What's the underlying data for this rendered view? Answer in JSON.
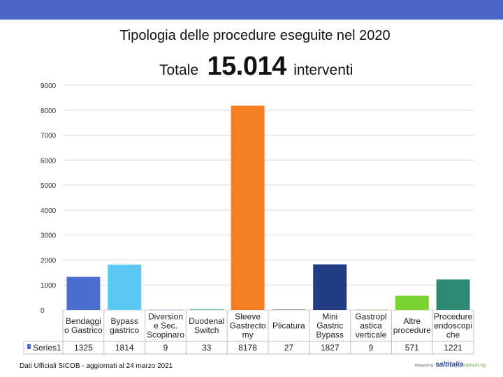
{
  "header": {
    "title": "Tipologia delle procedure eseguite nel 2020",
    "total_label": "Totale",
    "total_value": "15.014",
    "total_unit": "interventi"
  },
  "chart_data": {
    "type": "bar",
    "ylim": [
      0,
      9000
    ],
    "y_ticks": [
      "0",
      "1000",
      "2000",
      "3000",
      "4000",
      "5000",
      "6000",
      "7000",
      "8000",
      "9000"
    ],
    "grid": true,
    "legend_placement": "table-left",
    "categories": [
      [
        "Bendaggi",
        "o Gastrico"
      ],
      [
        "Bypass",
        "gastrico"
      ],
      [
        "Diversion",
        "e Sec.",
        "Scopinaro"
      ],
      [
        "Duodenal",
        "Switch"
      ],
      [
        "Sleeve",
        "Gastrecto",
        "my"
      ],
      [
        "Plicatura"
      ],
      [
        "Mini",
        "Gastric",
        "Bypass"
      ],
      [
        "Gastropl",
        "astica",
        "verticale"
      ],
      [
        "Altre",
        "procedure"
      ],
      [
        "Procedure",
        "endoscopi",
        "che"
      ]
    ],
    "series": [
      {
        "name": "Series1",
        "values": [
          1325,
          1814,
          9,
          33,
          8178,
          27,
          1827,
          9,
          571,
          1221
        ],
        "value_labels": [
          "1325",
          "1814",
          "9",
          "33",
          "8178",
          "27",
          "1827",
          "9",
          "571",
          "1221"
        ]
      }
    ],
    "colors": [
      "#4a6fd1",
      "#5bc8f3",
      "#7b7fc4",
      "#6fc1a6",
      "#f47f22",
      "#9a9a9a",
      "#233d84",
      "#8a9a55",
      "#7bd233",
      "#2e8a72"
    ]
  },
  "footer": {
    "source": "Dati Ufficiali SICOB - aggiornati al 24 marzo 2021",
    "brand_prefix": "Powered by",
    "brand_name": "saltitalia",
    "brand_domain": "consult.ng"
  }
}
